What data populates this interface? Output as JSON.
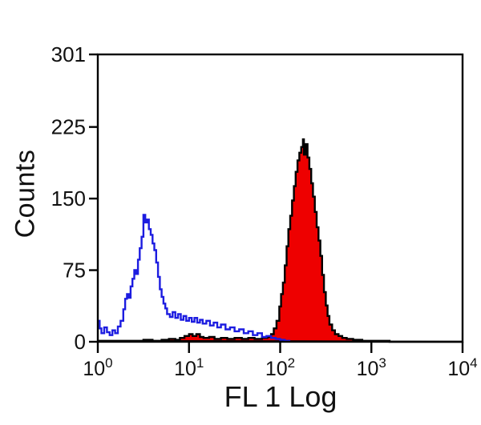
{
  "figure": {
    "background_color": "#ffffff",
    "axis_color": "#000000",
    "text_color": "#111111"
  },
  "chart_data": {
    "type": "line",
    "subtype": "flow-cytometry-histogram-overlay",
    "title": "",
    "xlabel": "FL 1 Log",
    "ylabel": "Counts",
    "x_scale": "log10",
    "xlim": [
      1,
      10000
    ],
    "xlim_log10": [
      0,
      4
    ],
    "ylim": [
      0,
      301
    ],
    "grid": false,
    "legend": null,
    "y_ticks": [
      0,
      75,
      150,
      225,
      301
    ],
    "y_tick_labels": [
      "0",
      "75",
      "150",
      "225",
      "301"
    ],
    "x_ticks_log10": [
      0,
      1,
      2,
      3,
      4
    ],
    "x_tick_labels": [
      {
        "base": "10",
        "exp": "0"
      },
      {
        "base": "10",
        "exp": "1"
      },
      {
        "base": "10",
        "exp": "2"
      },
      {
        "base": "10",
        "exp": "3"
      },
      {
        "base": "10",
        "exp": "4"
      }
    ],
    "series": [
      {
        "name": "red-filled-histogram",
        "style": "filled",
        "line_color": "#000000",
        "fill_color": "#ee0000",
        "peak_log10x": 2.25,
        "peak_counts": 212,
        "points_log10x_counts": [
          [
            0.0,
            1
          ],
          [
            0.3,
            1
          ],
          [
            0.5,
            2
          ],
          [
            0.6,
            1
          ],
          [
            0.7,
            2
          ],
          [
            0.78,
            3
          ],
          [
            0.85,
            2
          ],
          [
            0.9,
            4
          ],
          [
            0.95,
            6
          ],
          [
            1.0,
            8
          ],
          [
            1.04,
            6
          ],
          [
            1.08,
            8
          ],
          [
            1.12,
            5
          ],
          [
            1.16,
            4
          ],
          [
            1.22,
            5
          ],
          [
            1.28,
            3
          ],
          [
            1.35,
            4
          ],
          [
            1.42,
            3
          ],
          [
            1.5,
            4
          ],
          [
            1.58,
            3
          ],
          [
            1.65,
            4
          ],
          [
            1.72,
            3
          ],
          [
            1.8,
            4
          ],
          [
            1.86,
            5
          ],
          [
            1.9,
            8
          ],
          [
            1.93,
            14
          ],
          [
            1.96,
            22
          ],
          [
            1.99,
            37
          ],
          [
            2.01,
            50
          ],
          [
            2.03,
            62
          ],
          [
            2.05,
            80
          ],
          [
            2.07,
            100
          ],
          [
            2.09,
            118
          ],
          [
            2.11,
            132
          ],
          [
            2.13,
            148
          ],
          [
            2.15,
            163
          ],
          [
            2.17,
            178
          ],
          [
            2.19,
            190
          ],
          [
            2.21,
            198
          ],
          [
            2.23,
            204
          ],
          [
            2.25,
            212
          ],
          [
            2.26,
            196
          ],
          [
            2.28,
            207
          ],
          [
            2.3,
            193
          ],
          [
            2.32,
            181
          ],
          [
            2.34,
            166
          ],
          [
            2.36,
            152
          ],
          [
            2.38,
            136
          ],
          [
            2.4,
            120
          ],
          [
            2.42,
            106
          ],
          [
            2.44,
            90
          ],
          [
            2.46,
            70
          ],
          [
            2.48,
            52
          ],
          [
            2.5,
            38
          ],
          [
            2.52,
            27
          ],
          [
            2.54,
            18
          ],
          [
            2.57,
            12
          ],
          [
            2.6,
            8
          ],
          [
            2.64,
            6
          ],
          [
            2.68,
            4
          ],
          [
            2.73,
            3
          ],
          [
            2.8,
            2
          ],
          [
            2.9,
            1
          ],
          [
            3.0,
            1
          ],
          [
            3.2,
            0
          ],
          [
            4.0,
            0
          ]
        ]
      },
      {
        "name": "blue-open-histogram",
        "style": "open",
        "line_color": "#1c1ce0",
        "fill_color": "none",
        "peak_log10x": 0.5,
        "peak_counts": 133,
        "points_log10x_counts": [
          [
            0.0,
            22
          ],
          [
            0.02,
            14
          ],
          [
            0.04,
            9
          ],
          [
            0.07,
            15
          ],
          [
            0.1,
            10
          ],
          [
            0.13,
            7
          ],
          [
            0.16,
            12
          ],
          [
            0.19,
            9
          ],
          [
            0.22,
            16
          ],
          [
            0.25,
            22
          ],
          [
            0.28,
            34
          ],
          [
            0.3,
            45
          ],
          [
            0.32,
            50
          ],
          [
            0.34,
            46
          ],
          [
            0.36,
            58
          ],
          [
            0.38,
            66
          ],
          [
            0.4,
            75
          ],
          [
            0.42,
            71
          ],
          [
            0.44,
            86
          ],
          [
            0.46,
            98
          ],
          [
            0.48,
            110
          ],
          [
            0.5,
            133
          ],
          [
            0.52,
            125
          ],
          [
            0.54,
            128
          ],
          [
            0.56,
            118
          ],
          [
            0.58,
            112
          ],
          [
            0.6,
            103
          ],
          [
            0.62,
            96
          ],
          [
            0.64,
            83
          ],
          [
            0.66,
            68
          ],
          [
            0.68,
            55
          ],
          [
            0.7,
            47
          ],
          [
            0.72,
            40
          ],
          [
            0.74,
            35
          ],
          [
            0.76,
            29
          ],
          [
            0.79,
            26
          ],
          [
            0.82,
            31
          ],
          [
            0.85,
            25
          ],
          [
            0.88,
            29
          ],
          [
            0.91,
            23
          ],
          [
            0.94,
            27
          ],
          [
            0.97,
            22
          ],
          [
            1.0,
            25
          ],
          [
            1.03,
            21
          ],
          [
            1.06,
            25
          ],
          [
            1.09,
            20
          ],
          [
            1.12,
            23
          ],
          [
            1.15,
            19
          ],
          [
            1.19,
            22
          ],
          [
            1.23,
            17
          ],
          [
            1.27,
            20
          ],
          [
            1.31,
            15
          ],
          [
            1.35,
            18
          ],
          [
            1.4,
            13
          ],
          [
            1.45,
            15
          ],
          [
            1.5,
            11
          ],
          [
            1.55,
            13
          ],
          [
            1.6,
            9
          ],
          [
            1.65,
            11
          ],
          [
            1.7,
            7
          ],
          [
            1.75,
            9
          ],
          [
            1.8,
            5
          ],
          [
            1.85,
            6
          ],
          [
            1.9,
            4
          ],
          [
            1.95,
            3
          ],
          [
            2.0,
            2
          ],
          [
            2.05,
            1
          ],
          [
            2.1,
            0
          ]
        ]
      }
    ]
  }
}
